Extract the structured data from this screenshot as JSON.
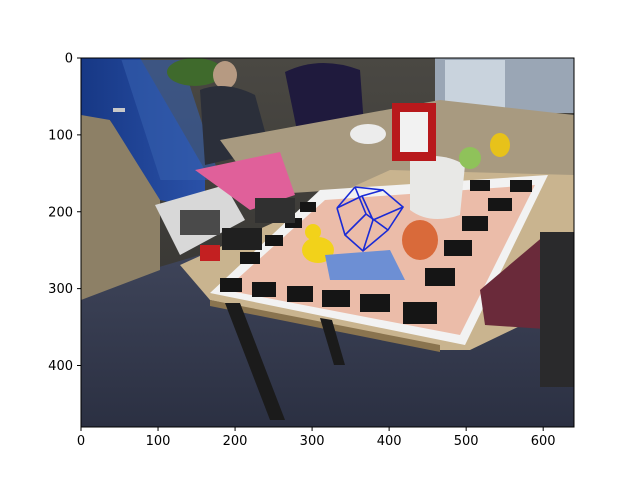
{
  "figure": {
    "image_description_note": "",
    "background": "#ffffff"
  },
  "axes": {
    "x_ticks": [
      "0",
      "100",
      "200",
      "300",
      "400",
      "500",
      "600"
    ],
    "y_ticks": [
      "0",
      "100",
      "200",
      "300",
      "400"
    ],
    "x_tick_values": [
      0,
      100,
      200,
      300,
      400,
      500,
      600
    ],
    "y_tick_values": [
      0,
      100,
      200,
      300,
      400
    ],
    "xlim": [
      0,
      640
    ],
    "ylim": [
      480,
      0
    ]
  },
  "overlay": {
    "cube_color": "#1a2bd6"
  },
  "colors": {
    "wall": "#3b3a38",
    "door_blue": "#1d3f93",
    "floor": "#3c4257",
    "table_top": "#c9b48f",
    "board_white": "#f2f2f2",
    "board_black": "#151515",
    "duck_yellow": "#f2d21a",
    "orange": "#d96a3a",
    "magenta_box": "#e0609a"
  }
}
